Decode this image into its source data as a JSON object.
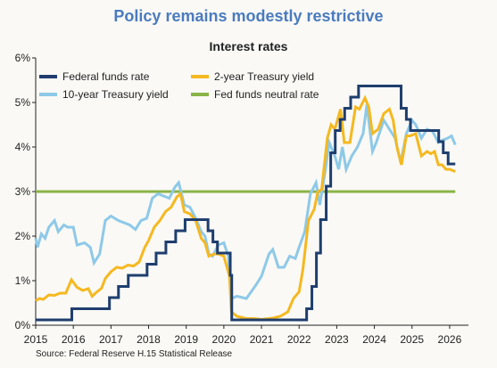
{
  "title": "Policy remains modestly restrictive",
  "subtitle": "Interest rates",
  "source": "Source: Federal Reserve H.15 Statistical Release",
  "chart_data": {
    "type": "line",
    "ylim": [
      0,
      6
    ],
    "xlim": [
      2015,
      2026.5
    ],
    "y_ticks": [
      "0%",
      "1%",
      "2%",
      "3%",
      "4%",
      "5%",
      "6%"
    ],
    "x_ticks": [
      "2015",
      "2016",
      "2017",
      "2018",
      "2019",
      "2020",
      "2021",
      "2022",
      "2023",
      "2024",
      "2025",
      "2026"
    ],
    "grid": false,
    "legend_position": "top-left",
    "series": [
      {
        "name": "Federal funds rate",
        "color": "#1f3e6e",
        "step": true,
        "points": [
          [
            2015,
            0.12
          ],
          [
            2015.96,
            0.12
          ],
          [
            2015.96,
            0.37
          ],
          [
            2016.96,
            0.37
          ],
          [
            2016.96,
            0.62
          ],
          [
            2017.2,
            0.62
          ],
          [
            2017.2,
            0.87
          ],
          [
            2017.46,
            0.87
          ],
          [
            2017.46,
            1.12
          ],
          [
            2017.96,
            1.12
          ],
          [
            2017.96,
            1.37
          ],
          [
            2018.2,
            1.37
          ],
          [
            2018.2,
            1.62
          ],
          [
            2018.46,
            1.62
          ],
          [
            2018.46,
            1.87
          ],
          [
            2018.72,
            1.87
          ],
          [
            2018.72,
            2.12
          ],
          [
            2018.97,
            2.12
          ],
          [
            2018.97,
            2.37
          ],
          [
            2019.58,
            2.37
          ],
          [
            2019.58,
            2.12
          ],
          [
            2019.71,
            2.12
          ],
          [
            2019.71,
            1.87
          ],
          [
            2019.83,
            1.87
          ],
          [
            2019.83,
            1.62
          ],
          [
            2020.17,
            1.62
          ],
          [
            2020.17,
            1.12
          ],
          [
            2020.21,
            1.12
          ],
          [
            2020.21,
            0.12
          ],
          [
            2022.2,
            0.12
          ],
          [
            2022.2,
            0.37
          ],
          [
            2022.34,
            0.37
          ],
          [
            2022.34,
            0.87
          ],
          [
            2022.46,
            0.87
          ],
          [
            2022.46,
            1.62
          ],
          [
            2022.57,
            1.62
          ],
          [
            2022.57,
            2.37
          ],
          [
            2022.72,
            2.37
          ],
          [
            2022.72,
            3.12
          ],
          [
            2022.84,
            3.12
          ],
          [
            2022.84,
            3.87
          ],
          [
            2022.96,
            3.87
          ],
          [
            2022.96,
            4.37
          ],
          [
            2023.09,
            4.37
          ],
          [
            2023.09,
            4.62
          ],
          [
            2023.21,
            4.62
          ],
          [
            2023.21,
            4.87
          ],
          [
            2023.37,
            4.87
          ],
          [
            2023.37,
            5.12
          ],
          [
            2023.58,
            5.12
          ],
          [
            2023.58,
            5.37
          ],
          [
            2024.71,
            5.37
          ],
          [
            2024.71,
            4.87
          ],
          [
            2024.85,
            4.87
          ],
          [
            2024.85,
            4.62
          ],
          [
            2024.96,
            4.62
          ],
          [
            2024.96,
            4.37
          ],
          [
            2025.71,
            4.37
          ],
          [
            2025.71,
            4.12
          ],
          [
            2025.83,
            4.12
          ],
          [
            2025.83,
            3.87
          ],
          [
            2025.96,
            3.87
          ],
          [
            2025.96,
            3.62
          ],
          [
            2026.15,
            3.62
          ]
        ]
      },
      {
        "name": "2-year Treasury yield",
        "color": "#f5b820",
        "step": false,
        "points": [
          [
            2015,
            0.55
          ],
          [
            2015.1,
            0.6
          ],
          [
            2015.2,
            0.58
          ],
          [
            2015.35,
            0.68
          ],
          [
            2015.5,
            0.67
          ],
          [
            2015.65,
            0.72
          ],
          [
            2015.8,
            0.72
          ],
          [
            2015.95,
            1.02
          ],
          [
            2016.1,
            0.85
          ],
          [
            2016.25,
            0.78
          ],
          [
            2016.4,
            0.82
          ],
          [
            2016.5,
            0.65
          ],
          [
            2016.6,
            0.73
          ],
          [
            2016.75,
            0.83
          ],
          [
            2016.85,
            1.05
          ],
          [
            2017.0,
            1.2
          ],
          [
            2017.15,
            1.3
          ],
          [
            2017.3,
            1.28
          ],
          [
            2017.45,
            1.35
          ],
          [
            2017.6,
            1.33
          ],
          [
            2017.75,
            1.42
          ],
          [
            2017.9,
            1.75
          ],
          [
            2018.0,
            1.9
          ],
          [
            2018.15,
            2.2
          ],
          [
            2018.3,
            2.35
          ],
          [
            2018.45,
            2.55
          ],
          [
            2018.6,
            2.65
          ],
          [
            2018.75,
            2.88
          ],
          [
            2018.85,
            2.95
          ],
          [
            2018.95,
            2.55
          ],
          [
            2019.1,
            2.5
          ],
          [
            2019.25,
            2.35
          ],
          [
            2019.4,
            1.95
          ],
          [
            2019.5,
            1.85
          ],
          [
            2019.6,
            1.55
          ],
          [
            2019.75,
            1.6
          ],
          [
            2019.85,
            1.6
          ],
          [
            2020.0,
            1.55
          ],
          [
            2020.15,
            1.1
          ],
          [
            2020.2,
            0.3
          ],
          [
            2020.35,
            0.2
          ],
          [
            2020.6,
            0.15
          ],
          [
            2020.8,
            0.15
          ],
          [
            2021.0,
            0.13
          ],
          [
            2021.3,
            0.16
          ],
          [
            2021.5,
            0.2
          ],
          [
            2021.7,
            0.3
          ],
          [
            2021.85,
            0.6
          ],
          [
            2022.0,
            0.75
          ],
          [
            2022.1,
            1.25
          ],
          [
            2022.25,
            2.35
          ],
          [
            2022.4,
            2.6
          ],
          [
            2022.5,
            3.0
          ],
          [
            2022.6,
            3.05
          ],
          [
            2022.75,
            4.2
          ],
          [
            2022.85,
            4.5
          ],
          [
            2022.95,
            4.4
          ],
          [
            2023.1,
            4.85
          ],
          [
            2023.2,
            4.1
          ],
          [
            2023.35,
            4.1
          ],
          [
            2023.5,
            4.9
          ],
          [
            2023.6,
            4.85
          ],
          [
            2023.75,
            5.1
          ],
          [
            2023.85,
            4.9
          ],
          [
            2023.95,
            4.3
          ],
          [
            2024.1,
            4.4
          ],
          [
            2024.25,
            4.75
          ],
          [
            2024.4,
            4.85
          ],
          [
            2024.5,
            4.6
          ],
          [
            2024.6,
            4.0
          ],
          [
            2024.72,
            3.6
          ],
          [
            2024.85,
            4.25
          ],
          [
            2024.95,
            4.25
          ],
          [
            2025.1,
            4.3
          ],
          [
            2025.25,
            3.8
          ],
          [
            2025.4,
            3.9
          ],
          [
            2025.5,
            3.85
          ],
          [
            2025.6,
            3.9
          ],
          [
            2025.7,
            3.6
          ],
          [
            2025.8,
            3.6
          ],
          [
            2025.9,
            3.5
          ],
          [
            2026.0,
            3.5
          ],
          [
            2026.15,
            3.45
          ]
        ]
      },
      {
        "name": "10-year Treasury yield",
        "color": "#8ec9e8",
        "step": false,
        "points": [
          [
            2015,
            1.95
          ],
          [
            2015.05,
            1.75
          ],
          [
            2015.15,
            2.05
          ],
          [
            2015.25,
            1.95
          ],
          [
            2015.35,
            2.2
          ],
          [
            2015.5,
            2.35
          ],
          [
            2015.6,
            2.1
          ],
          [
            2015.75,
            2.25
          ],
          [
            2015.85,
            2.2
          ],
          [
            2016.0,
            2.2
          ],
          [
            2016.1,
            1.8
          ],
          [
            2016.3,
            1.85
          ],
          [
            2016.45,
            1.75
          ],
          [
            2016.55,
            1.4
          ],
          [
            2016.7,
            1.6
          ],
          [
            2016.85,
            2.35
          ],
          [
            2017.0,
            2.45
          ],
          [
            2017.2,
            2.35
          ],
          [
            2017.35,
            2.3
          ],
          [
            2017.5,
            2.25
          ],
          [
            2017.65,
            2.15
          ],
          [
            2017.8,
            2.35
          ],
          [
            2017.95,
            2.4
          ],
          [
            2018.1,
            2.85
          ],
          [
            2018.25,
            2.95
          ],
          [
            2018.4,
            2.9
          ],
          [
            2018.55,
            2.85
          ],
          [
            2018.7,
            3.1
          ],
          [
            2018.8,
            3.2
          ],
          [
            2018.95,
            2.7
          ],
          [
            2019.1,
            2.65
          ],
          [
            2019.25,
            2.4
          ],
          [
            2019.4,
            2.1
          ],
          [
            2019.5,
            2.0
          ],
          [
            2019.6,
            1.6
          ],
          [
            2019.7,
            1.55
          ],
          [
            2019.85,
            1.8
          ],
          [
            2020.0,
            1.85
          ],
          [
            2020.12,
            1.55
          ],
          [
            2020.2,
            0.6
          ],
          [
            2020.35,
            0.65
          ],
          [
            2020.6,
            0.6
          ],
          [
            2020.85,
            0.9
          ],
          [
            2021.0,
            1.1
          ],
          [
            2021.2,
            1.6
          ],
          [
            2021.3,
            1.7
          ],
          [
            2021.45,
            1.3
          ],
          [
            2021.6,
            1.3
          ],
          [
            2021.75,
            1.55
          ],
          [
            2021.9,
            1.5
          ],
          [
            2022.0,
            1.75
          ],
          [
            2022.15,
            2.1
          ],
          [
            2022.3,
            2.95
          ],
          [
            2022.45,
            3.2
          ],
          [
            2022.55,
            2.7
          ],
          [
            2022.7,
            3.5
          ],
          [
            2022.8,
            4.1
          ],
          [
            2022.95,
            3.8
          ],
          [
            2023.05,
            3.5
          ],
          [
            2023.15,
            4.0
          ],
          [
            2023.25,
            3.5
          ],
          [
            2023.4,
            3.8
          ],
          [
            2023.55,
            4.0
          ],
          [
            2023.7,
            4.3
          ],
          [
            2023.8,
            4.95
          ],
          [
            2023.95,
            3.9
          ],
          [
            2024.05,
            4.1
          ],
          [
            2024.25,
            4.6
          ],
          [
            2024.4,
            4.4
          ],
          [
            2024.55,
            4.2
          ],
          [
            2024.7,
            3.65
          ],
          [
            2024.85,
            4.3
          ],
          [
            2025.0,
            4.6
          ],
          [
            2025.1,
            4.5
          ],
          [
            2025.25,
            4.2
          ],
          [
            2025.4,
            4.4
          ],
          [
            2025.55,
            4.35
          ],
          [
            2025.7,
            4.1
          ],
          [
            2025.8,
            4.15
          ],
          [
            2025.95,
            4.2
          ],
          [
            2026.05,
            4.25
          ],
          [
            2026.15,
            4.05
          ]
        ]
      },
      {
        "name": "Fed funds neutral rate",
        "color": "#8ab446",
        "step": false,
        "points": [
          [
            2015,
            3.0
          ],
          [
            2026.15,
            3.0
          ]
        ]
      }
    ]
  }
}
